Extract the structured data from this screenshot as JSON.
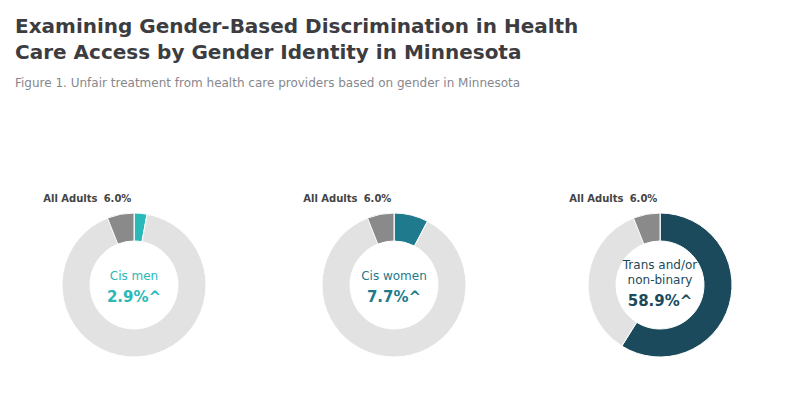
{
  "title": "Examining Gender-Based Discrimination in Health\nCare Access by Gender Identity in Minnesota",
  "subtitle": "Figure 1. Unfair treatment from health care providers based on gender in Minnesota",
  "chart_data": [
    {
      "type": "pie",
      "title": "Cis men",
      "values": [
        2.9,
        97.1
      ],
      "value_labels": [
        "2.9%^",
        null
      ],
      "colors": [
        "#2ab8b8",
        "#e2e2e2"
      ],
      "reference": {
        "name": "All Adults",
        "value": 6.0,
        "label": "6.0%",
        "color": "#8a8a8a"
      }
    },
    {
      "type": "pie",
      "title": "Cis women",
      "values": [
        7.7,
        92.3
      ],
      "value_labels": [
        "7.7%^",
        null
      ],
      "colors": [
        "#1e7a8c",
        "#e2e2e2"
      ],
      "reference": {
        "name": "All Adults",
        "value": 6.0,
        "label": "6.0%",
        "color": "#8a8a8a"
      }
    },
    {
      "type": "pie",
      "title": "Trans and/or\nnon-binary",
      "values": [
        58.9,
        41.1
      ],
      "value_labels": [
        "58.9%^",
        null
      ],
      "colors": [
        "#1a4a5c",
        "#e2e2e2"
      ],
      "reference": {
        "name": "All Adults",
        "value": 6.0,
        "label": "6.0%",
        "color": "#8a8a8a"
      }
    }
  ]
}
